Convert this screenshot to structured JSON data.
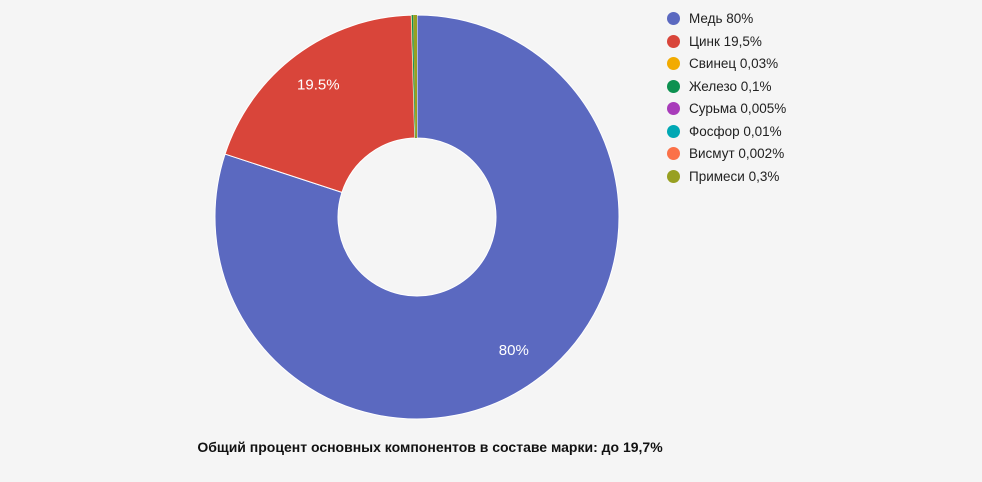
{
  "page": {
    "background_color": "#f5f5f5"
  },
  "chart_data": {
    "type": "pie",
    "subtype": "donut",
    "title": "",
    "legend_position": "right",
    "legend_marker": "circle-icon",
    "slice_label_color": "#ffffff",
    "slice_label_min_pct": 5,
    "separator_color": "#ffffff",
    "caption": "Общий процент основных компонентов в составе марки: до 19,7%",
    "slices": [
      {
        "name": "Медь",
        "value": 80,
        "legend_label": "Медь 80%",
        "slice_label": "80%",
        "color": "#5b69c0"
      },
      {
        "name": "Цинк",
        "value": 19.5,
        "legend_label": "Цинк 19,5%",
        "slice_label": "19.5%",
        "color": "#d9453a"
      },
      {
        "name": "Свинец",
        "value": 0.03,
        "legend_label": "Свинец 0,03%",
        "slice_label": "",
        "color": "#f2ab00"
      },
      {
        "name": "Железо",
        "value": 0.1,
        "legend_label": "Железо 0,1%",
        "slice_label": "",
        "color": "#0d9150"
      },
      {
        "name": "Сурьма",
        "value": 0.005,
        "legend_label": "Сурьма 0,005%",
        "slice_label": "",
        "color": "#a83cba"
      },
      {
        "name": "Фосфор",
        "value": 0.01,
        "legend_label": "Фосфор 0,01%",
        "slice_label": "",
        "color": "#00a8b4"
      },
      {
        "name": "Висмут",
        "value": 0.002,
        "legend_label": "Висмут 0,002%",
        "slice_label": "",
        "color": "#fb7148"
      },
      {
        "name": "Примеси",
        "value": 0.3,
        "legend_label": "Примеси 0,3%",
        "slice_label": "",
        "color": "#98a021"
      }
    ]
  }
}
